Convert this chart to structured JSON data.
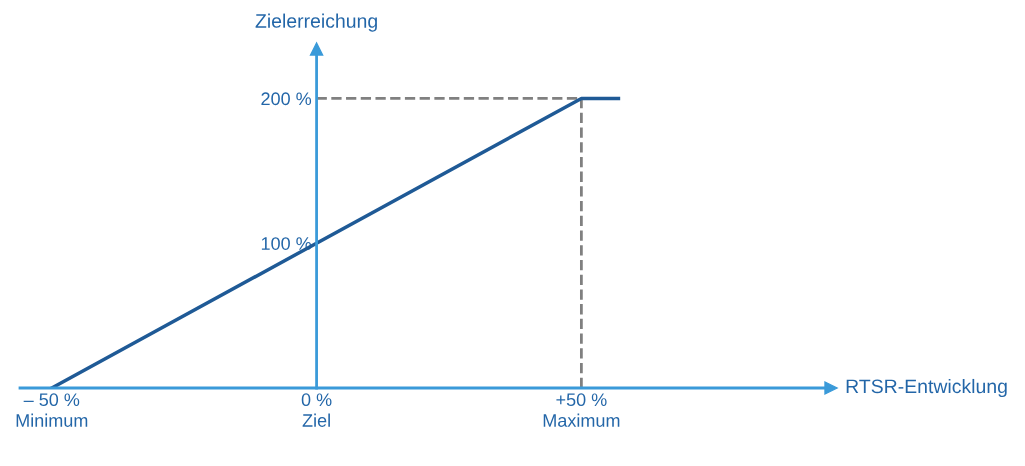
{
  "chart_data": {
    "type": "line",
    "xlabel": "RTSR-Entwicklung",
    "ylabel": "Zielerreichung",
    "x": [
      -50,
      50,
      57
    ],
    "series": [
      {
        "color": "#1f5a96",
        "values": [
          0,
          200,
          200
        ]
      }
    ],
    "xlim": [
      -56,
      96
    ],
    "ylim": [
      0,
      230
    ],
    "xticks": [
      {
        "value": -50,
        "label": "– 50 %\nMinimum"
      },
      {
        "value": 0,
        "label": "0 %\nZiel"
      },
      {
        "value": 50,
        "label": "+50 %\nMaximum"
      }
    ],
    "yticks": [
      {
        "value": 100,
        "label": "100 %"
      },
      {
        "value": 200,
        "label": "200 %"
      }
    ],
    "ref_lines": [
      {
        "axis": "y",
        "value": 200,
        "color": "#808080",
        "line_style": "dashed"
      },
      {
        "axis": "x",
        "value": 50,
        "color": "#808080",
        "line_style": "dashed"
      }
    ],
    "grid": false,
    "legend": false,
    "marker": "none",
    "line_style": "solid"
  }
}
